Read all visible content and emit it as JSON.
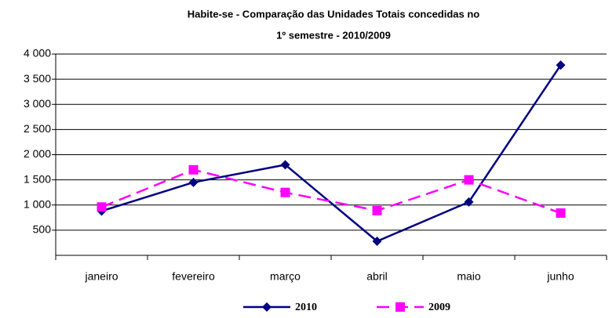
{
  "chart_data": {
    "type": "line",
    "title": [
      "Habite-se - Comparação das Unidades Totais concedidas no",
      "1º semestre - 2010/2009"
    ],
    "categories": [
      "janeiro",
      "fevereiro",
      "março",
      "abril",
      "maio",
      "junho"
    ],
    "series": [
      {
        "name": "2010",
        "color": "#000080",
        "marker": "diamond",
        "dash": false,
        "values": [
          880,
          1450,
          1800,
          280,
          1060,
          3780
        ]
      },
      {
        "name": "2009",
        "color": "#ff00ff",
        "marker": "square",
        "dash": true,
        "values": [
          960,
          1700,
          1250,
          890,
          1500,
          840
        ]
      }
    ],
    "ylim": [
      0,
      4000
    ],
    "yticks": [
      500,
      {
        "value": 1000,
        "label": "1 000"
      },
      {
        "value": 1500,
        "label": "1 500"
      },
      {
        "value": 2000,
        "label": "2 000"
      },
      {
        "value": 2500,
        "label": "2 500"
      },
      {
        "value": 3000,
        "label": "3 000"
      },
      {
        "value": 3500,
        "label": "3 500"
      },
      {
        "value": 4000,
        "label": "4 000"
      }
    ],
    "grid": true,
    "legend": "bottom"
  }
}
